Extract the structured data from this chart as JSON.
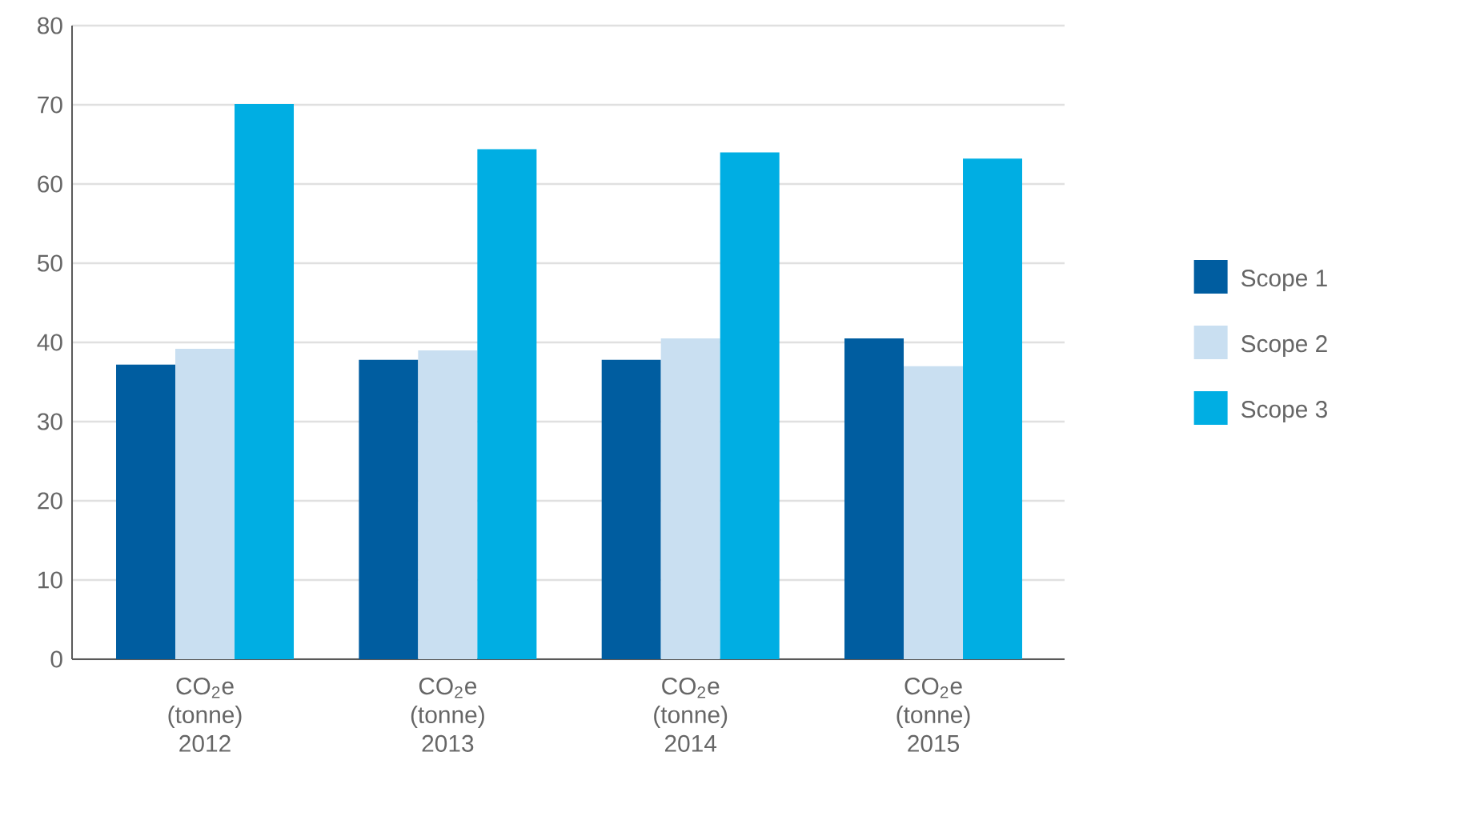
{
  "chart_data": {
    "type": "bar",
    "categories": [
      "CO$_{2}$e (tonne) 2012",
      "CO$_{2}$e (tonne) 2013",
      "CO$_{2}$e (tonne) 2014",
      "CO$_{2}$e (tonne) 2015"
    ],
    "series": [
      {
        "name": "Scope 1",
        "color": "#005da0",
        "values": [
          37.2,
          37.8,
          37.8,
          40.5
        ]
      },
      {
        "name": "Scope 2",
        "color": "#c9dff1",
        "values": [
          39.2,
          39.0,
          40.5,
          37.0
        ]
      },
      {
        "name": "Scope 3",
        "color": "#00aee3",
        "values": [
          70.1,
          64.4,
          64.0,
          63.2
        ]
      }
    ],
    "ylim": [
      0,
      80
    ],
    "yticks": [
      0,
      10,
      20,
      30,
      40,
      50,
      60,
      70,
      80
    ],
    "grid": "y",
    "legend": "right"
  }
}
